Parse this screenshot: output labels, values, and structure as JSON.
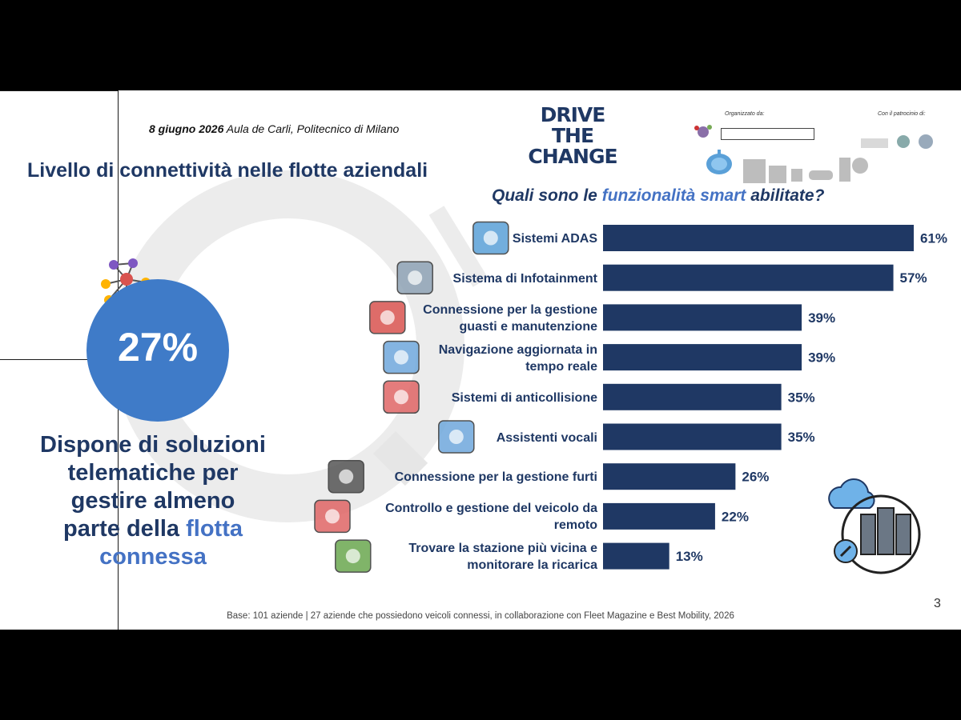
{
  "header": {
    "event_date": "8 giugno 2026",
    "event_place": " Aula de Carli, Politecnico di Milano",
    "logo_line1": "DRIVE",
    "logo_line2": "THE CHANGE",
    "organized_by": "Organizzato da:",
    "patronage": "Con il patrocinio di:"
  },
  "title": "Livello di connettività nelle flotte aziendali",
  "question": {
    "part1": "Quali sono le ",
    "highlight": "funzionalità smart",
    "part2": " abilitate?"
  },
  "kpi": {
    "value": "27%",
    "desc_line1": "Dispone di soluzioni",
    "desc_line2": "telematiche per",
    "desc_line3": "gestire almeno",
    "desc_line4_pre": "parte della ",
    "desc_line4_hl": "flotta",
    "desc_line5_hl": "connessa"
  },
  "colors": {
    "bar": "#1f3864",
    "accent": "#4472c4",
    "circle": "#3f7bc8",
    "title": "#1f3864"
  },
  "chart_data": {
    "type": "bar",
    "orientation": "horizontal",
    "unit": "%",
    "categories": [
      "Sistemi ADAS",
      "Sistema di Infotainment",
      "Connessione per la gestione guasti e manutenzione",
      "Navigazione aggiornata in tempo reale",
      "Sistemi di anticollisione",
      "Assistenti vocali",
      "Connessione per la gestione furti",
      "Controllo e gestione del veicolo da remoto",
      "Trovare la stazione più vicina e monitorare la ricarica"
    ],
    "label_lines": [
      [
        "Sistemi ADAS"
      ],
      [
        "Sistema di Infotainment"
      ],
      [
        "Connessione per la gestione",
        "guasti e manutenzione"
      ],
      [
        "Navigazione aggiornata in",
        "tempo reale"
      ],
      [
        "Sistemi di anticollisione"
      ],
      [
        "Assistenti vocali"
      ],
      [
        "Connessione per la gestione furti"
      ],
      [
        "Controllo e gestione del veicolo da",
        "remoto"
      ],
      [
        "Trovare la stazione più vicina e",
        "monitorare la ricarica"
      ]
    ],
    "values": [
      61,
      57,
      39,
      39,
      35,
      35,
      26,
      22,
      13
    ],
    "value_labels": [
      "61%",
      "57%",
      "39%",
      "39%",
      "35%",
      "35%",
      "26%",
      "22%",
      "13%"
    ],
    "icons": [
      "cloud-car-icon",
      "infotainment-screen-icon",
      "car-warning-icon",
      "navigation-map-icon",
      "car-crash-icon",
      "ai-microphone-icon",
      "thief-car-icon",
      "phone-location-icon",
      "ev-charging-icon"
    ],
    "xlim": [
      0,
      61
    ],
    "grid": false,
    "legend": "none"
  },
  "footer": {
    "note": "Base: 101 aziende | 27 aziende che possiedono veicoli connessi, in collaborazione con Fleet Magazine e Best Mobility, 2026",
    "page": "3"
  }
}
